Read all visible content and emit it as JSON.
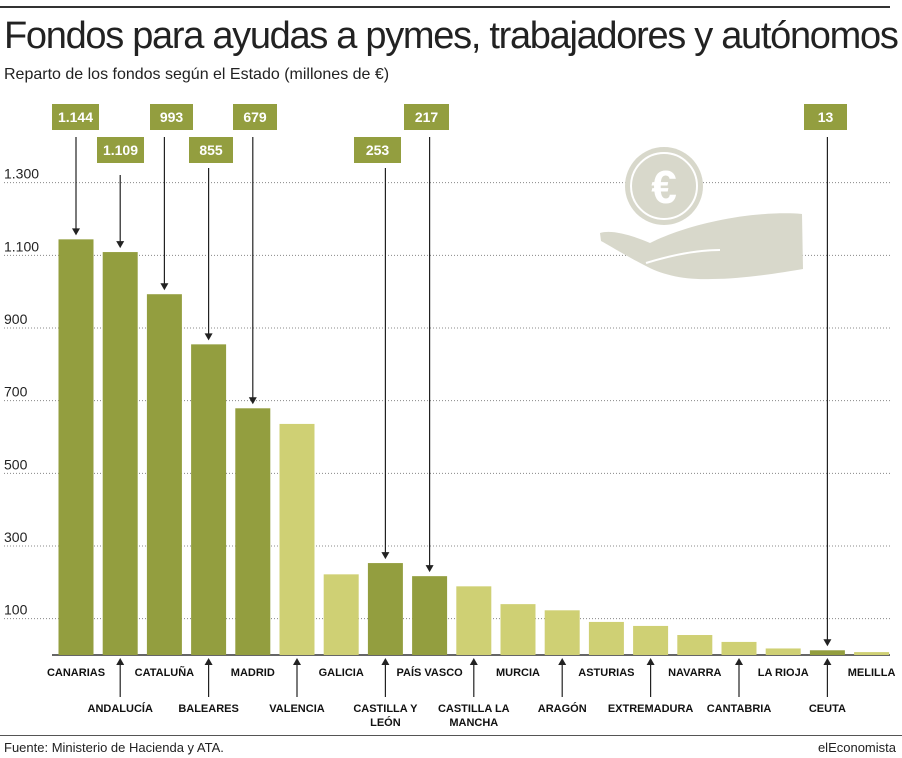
{
  "header": {
    "title": "Fondos para ayudas a pymes, trabajadores y autónomos",
    "subtitle": "Reparto de los fondos según el Estado (millones de €)"
  },
  "footer": {
    "source": "Fuente: Ministerio de Hacienda y ATA.",
    "brand": "elEconomista"
  },
  "colors": {
    "highlight": "#939e3f",
    "normal": "#cfd074",
    "illustration": "#d8d8cb"
  },
  "illustration": {
    "icon": "hand-holding-euro-coin-icon",
    "symbol": "€"
  },
  "chart_data": {
    "type": "bar",
    "title": "Fondos para ayudas a pymes, trabajadores y autónomos",
    "subtitle": "Reparto de los fondos según el Estado (millones de €)",
    "xlabel": "",
    "ylabel": "",
    "ylim": [
      0,
      1400
    ],
    "yticks": [
      100,
      300,
      500,
      700,
      900,
      1100,
      1300
    ],
    "ytick_labels": [
      "100",
      "300",
      "500",
      "700",
      "900",
      "1.100",
      "1.300"
    ],
    "grid": true,
    "categories": [
      {
        "label_lines": [
          "CANARIAS"
        ],
        "value": 1144,
        "highlight": true,
        "value_label": "1.144"
      },
      {
        "label_lines": [
          "ANDALUCÍA"
        ],
        "value": 1109,
        "highlight": true,
        "value_label": "1.109"
      },
      {
        "label_lines": [
          "CATALUÑA"
        ],
        "value": 993,
        "highlight": true,
        "value_label": "993"
      },
      {
        "label_lines": [
          "BALEARES"
        ],
        "value": 855,
        "highlight": true,
        "value_label": "855"
      },
      {
        "label_lines": [
          "MADRID"
        ],
        "value": 679,
        "highlight": true,
        "value_label": "679"
      },
      {
        "label_lines": [
          "VALENCIA"
        ],
        "value": 636,
        "highlight": false,
        "value_label": ""
      },
      {
        "label_lines": [
          "GALICIA"
        ],
        "value": 222,
        "highlight": false,
        "value_label": ""
      },
      {
        "label_lines": [
          "CASTILLA Y",
          "LEÓN"
        ],
        "value": 253,
        "highlight": true,
        "value_label": "253"
      },
      {
        "label_lines": [
          "PAÍS VASCO"
        ],
        "value": 217,
        "highlight": true,
        "value_label": "217"
      },
      {
        "label_lines": [
          "CASTILLA LA",
          "MANCHA"
        ],
        "value": 189,
        "highlight": false,
        "value_label": ""
      },
      {
        "label_lines": [
          "MURCIA"
        ],
        "value": 140,
        "highlight": false,
        "value_label": ""
      },
      {
        "label_lines": [
          "ARAGÓN"
        ],
        "value": 123,
        "highlight": false,
        "value_label": ""
      },
      {
        "label_lines": [
          "ASTURIAS"
        ],
        "value": 91,
        "highlight": false,
        "value_label": ""
      },
      {
        "label_lines": [
          "EXTREMADURA"
        ],
        "value": 80,
        "highlight": false,
        "value_label": ""
      },
      {
        "label_lines": [
          "NAVARRA"
        ],
        "value": 55,
        "highlight": false,
        "value_label": ""
      },
      {
        "label_lines": [
          "CANTABRIA"
        ],
        "value": 36,
        "highlight": false,
        "value_label": ""
      },
      {
        "label_lines": [
          "LA RIOJA"
        ],
        "value": 18,
        "highlight": false,
        "value_label": ""
      },
      {
        "label_lines": [
          "CEUTA"
        ],
        "value": 13,
        "highlight": true,
        "value_label": "13"
      },
      {
        "label_lines": [
          "MELILLA"
        ],
        "value": 8,
        "highlight": false,
        "value_label": ""
      }
    ]
  }
}
